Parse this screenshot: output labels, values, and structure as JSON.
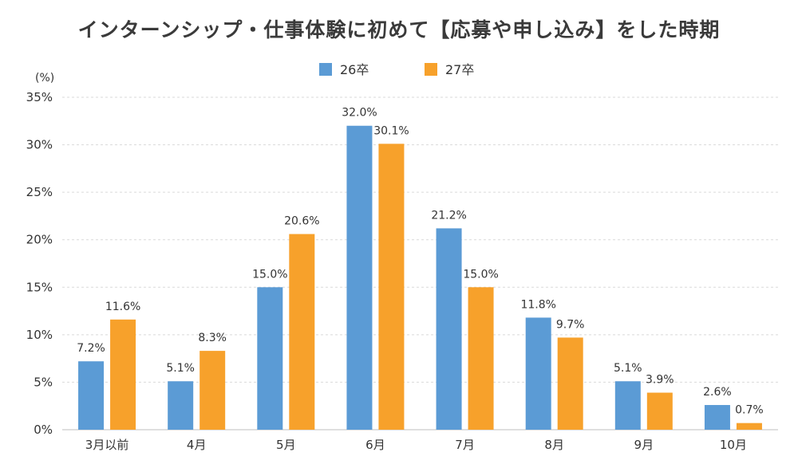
{
  "chart_data": {
    "type": "bar",
    "title": "インターンシップ・仕事体験に初めて【応募や申し込み】をした時期",
    "ylabel": "(%)",
    "xlabel": "",
    "ylim": [
      0,
      35
    ],
    "yticks": [
      0,
      5,
      10,
      15,
      20,
      25,
      30,
      35
    ],
    "ytick_suffix": "%",
    "value_suffix": "%",
    "grid": true,
    "legend_position": "top-center",
    "categories": [
      "3月以前",
      "4月",
      "5月",
      "6月",
      "7月",
      "8月",
      "9月",
      "10月"
    ],
    "series": [
      {
        "name": "26卒",
        "color": "#5b9bd5",
        "values": [
          7.2,
          5.1,
          15.0,
          32.0,
          21.2,
          11.8,
          5.1,
          2.6
        ]
      },
      {
        "name": "27卒",
        "color": "#f7a12b",
        "values": [
          11.6,
          8.3,
          20.6,
          30.1,
          15.0,
          9.7,
          3.9,
          0.7
        ]
      }
    ]
  }
}
